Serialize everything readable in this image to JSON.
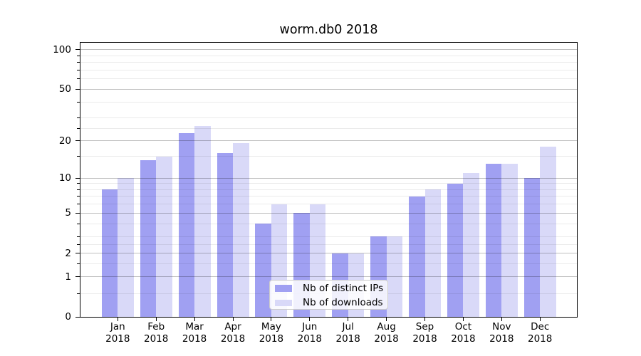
{
  "chart_data": {
    "type": "bar",
    "title": "worm.db0 2018",
    "categories": [
      "Jan",
      "Feb",
      "Mar",
      "Apr",
      "May",
      "Jun",
      "Jul",
      "Aug",
      "Sep",
      "Oct",
      "Nov",
      "Dec"
    ],
    "x_year": "2018",
    "series": [
      {
        "name": "Nb of distinct IPs",
        "color": "#a0a0f2",
        "values": [
          8,
          14,
          23,
          16,
          4,
          5,
          2,
          3,
          7,
          9,
          13,
          10
        ]
      },
      {
        "name": "Nb of downloads",
        "color": "#d9d9f8",
        "values": [
          10,
          15,
          26,
          19,
          6,
          6,
          2,
          3,
          8,
          11,
          13,
          18
        ]
      }
    ],
    "xlabel": "",
    "ylabel": "",
    "yscale": "log1p",
    "ylim": [
      0,
      113
    ],
    "yticks": [
      0,
      1,
      2,
      5,
      10,
      20,
      50,
      100
    ],
    "yticks_minor": [
      0.5,
      1.5,
      2.5,
      3,
      4,
      6,
      7,
      8,
      9,
      15,
      25,
      30,
      40,
      60,
      70,
      80,
      90
    ],
    "grid": "horizontal, drawn over bars",
    "legend_position": "inside lower-center"
  },
  "colors": {
    "background": "#ffffff",
    "spine": "#000000",
    "grid_major": "rgba(0,0,0,0.25)",
    "grid_minor": "rgba(0,0,0,0.08)",
    "legend_bg": "rgba(255,255,255,0.85)",
    "legend_border": "#cccccc",
    "text": "#000000"
  }
}
